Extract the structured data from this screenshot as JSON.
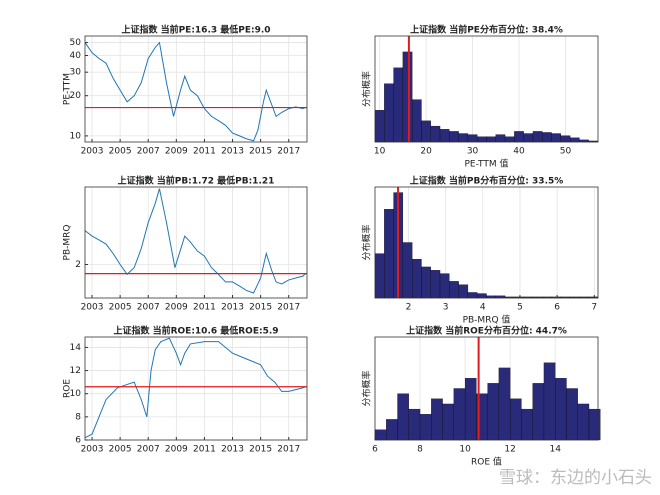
{
  "chart_data": [
    {
      "type": "line",
      "title": "上证指数 当前PE:16.3 最低PE:9.0",
      "ylabel": "PE-TTM",
      "color": "#1f77b4",
      "ylog": true,
      "grid": true,
      "x": [
        2002.5,
        2003,
        2003.5,
        2004,
        2004.5,
        2005,
        2005.5,
        2006,
        2006.5,
        2007,
        2007.5,
        2007.8,
        2008.3,
        2008.8,
        2009.3,
        2009.6,
        2010,
        2010.5,
        2011,
        2011.5,
        2012,
        2012.5,
        2013,
        2013.5,
        2014,
        2014.5,
        2014.8,
        2015.2,
        2015.4,
        2015.8,
        2016.1,
        2016.5,
        2017,
        2017.5,
        2018,
        2018.2
      ],
      "values": [
        50,
        42,
        38,
        35,
        27,
        22,
        18,
        20,
        25,
        38,
        46,
        50,
        25,
        14,
        22,
        28,
        22,
        20,
        16,
        14,
        13,
        12,
        10.5,
        10,
        9.5,
        9.2,
        11,
        18,
        22,
        17,
        14,
        15,
        16,
        16.5,
        16,
        16.3
      ],
      "xlim": [
        2002.5,
        2018.3
      ],
      "xticks": [
        2003,
        2005,
        2007,
        2009,
        2011,
        2013,
        2015,
        2017
      ],
      "ylim": [
        9,
        56
      ],
      "yticks": [
        10,
        20,
        30,
        40,
        50
      ],
      "hline": 16.3,
      "hline_color": "#e41a1c"
    },
    {
      "type": "histogram",
      "title": "上证指数 当前PE分布百分位: 38.4%",
      "xlabel": "PE-TTM 值",
      "ylabel": "分布概率",
      "color": "#2a2a7a",
      "grid": true,
      "bins": [
        9,
        11,
        13,
        15,
        17,
        19,
        21,
        23,
        25,
        27,
        29,
        31,
        33,
        35,
        37,
        39,
        41,
        43,
        45,
        47,
        49,
        51,
        53,
        55,
        57
      ],
      "values": [
        30,
        55,
        70,
        85,
        40,
        20,
        15,
        12,
        10,
        8,
        7,
        5,
        5,
        7,
        5,
        10,
        8,
        10,
        9,
        8,
        6,
        4,
        2,
        1
      ],
      "xlim": [
        9,
        57
      ],
      "xticks": [
        10,
        20,
        30,
        40,
        50
      ],
      "ylim": [
        0,
        100
      ],
      "vline": 16.3,
      "vline_color": "#e41a1c"
    },
    {
      "type": "line",
      "title": "上证指数 当前PB:1.72 最低PB:1.21",
      "ylabel": "PB-MRQ",
      "color": "#1f77b4",
      "ylog": true,
      "grid": true,
      "x": [
        2002.5,
        2003,
        2003.5,
        2004,
        2004.5,
        2005,
        2005.5,
        2006,
        2006.5,
        2007,
        2007.5,
        2007.8,
        2008.3,
        2008.9,
        2009.6,
        2010,
        2010.5,
        2011,
        2011.5,
        2012,
        2012.5,
        2013,
        2013.5,
        2014,
        2014.5,
        2015,
        2015.4,
        2015.8,
        2016.1,
        2016.5,
        2017,
        2017.5,
        2018,
        2018.2
      ],
      "values": [
        3.5,
        3.2,
        3.0,
        2.8,
        2.4,
        2.0,
        1.7,
        1.9,
        2.6,
        4.0,
        5.5,
        7.0,
        4.0,
        1.9,
        3.2,
        2.9,
        2.5,
        2.3,
        1.9,
        1.7,
        1.5,
        1.5,
        1.4,
        1.3,
        1.25,
        1.6,
        2.4,
        1.8,
        1.5,
        1.45,
        1.55,
        1.6,
        1.65,
        1.72
      ],
      "xlim": [
        2002.5,
        2018.3
      ],
      "xticks": [
        2003,
        2005,
        2007,
        2009,
        2011,
        2013,
        2015,
        2017
      ],
      "ylim": [
        1.15,
        7.2
      ],
      "yticks": [
        2
      ],
      "hline": 1.72,
      "hline_color": "#e41a1c"
    },
    {
      "type": "histogram",
      "title": "上证指数 当前PB分布百分位: 33.5%",
      "xlabel": "PB-MRQ 值",
      "ylabel": "分布概率",
      "color": "#2a2a7a",
      "grid": true,
      "bins": [
        1.1,
        1.35,
        1.6,
        1.85,
        2.1,
        2.35,
        2.6,
        2.85,
        3.1,
        3.35,
        3.6,
        3.85,
        4.1,
        4.35,
        4.6,
        4.85,
        5.1,
        5.35,
        5.6,
        5.85,
        6.1,
        6.35,
        6.6,
        6.85,
        7.1
      ],
      "values": [
        40,
        80,
        95,
        50,
        35,
        28,
        25,
        22,
        15,
        12,
        5,
        4,
        2,
        2,
        1,
        1,
        1,
        1,
        1,
        1,
        1,
        1,
        1,
        1
      ],
      "xlim": [
        1.1,
        7.1
      ],
      "xticks": [
        2,
        3,
        4,
        5,
        6,
        7
      ],
      "ylim": [
        0,
        100
      ],
      "vline": 1.72,
      "vline_color": "#e41a1c"
    },
    {
      "type": "line",
      "title": "上证指数 当前ROE:10.6 最低ROE:5.9",
      "ylabel": "ROE",
      "color": "#1f77b4",
      "grid": true,
      "x": [
        2002.5,
        2003,
        2003.5,
        2004,
        2004.8,
        2005.5,
        2006,
        2006.5,
        2006.9,
        2007.2,
        2007.5,
        2007.9,
        2008.5,
        2009,
        2009.3,
        2009.6,
        2010,
        2011,
        2012,
        2013,
        2014,
        2015,
        2015.5,
        2016,
        2016.5,
        2017,
        2018,
        2018.2
      ],
      "values": [
        6.2,
        6.5,
        8,
        9.5,
        10.5,
        10.8,
        11,
        9.5,
        8,
        12,
        13.8,
        14.5,
        14.8,
        13.5,
        12.5,
        13.5,
        14.3,
        14.5,
        14.5,
        13.5,
        13,
        12.5,
        11.5,
        11,
        10.2,
        10.2,
        10.5,
        10.6
      ],
      "xlim": [
        2002.5,
        2018.3
      ],
      "xticks": [
        2003,
        2005,
        2007,
        2009,
        2011,
        2013,
        2015,
        2017
      ],
      "ylim": [
        6,
        14.9
      ],
      "yticks": [
        6,
        8,
        10,
        12,
        14
      ],
      "hline": 10.6,
      "hline_color": "#e41a1c"
    },
    {
      "type": "histogram",
      "title": "上证指数 当前ROE分布百分位: 44.7%",
      "xlabel": "ROE 值",
      "ylabel": "分布概率",
      "color": "#2a2a7a",
      "grid": true,
      "bins": [
        6,
        6.5,
        7,
        7.5,
        8,
        8.5,
        9,
        9.5,
        10,
        10.5,
        11,
        11.5,
        12,
        12.5,
        13,
        13.5,
        14,
        14.5,
        15,
        15.5,
        16
      ],
      "values": [
        10,
        20,
        45,
        30,
        25,
        40,
        35,
        50,
        60,
        45,
        55,
        70,
        40,
        30,
        55,
        75,
        60,
        50,
        35,
        30
      ],
      "xlim": [
        6,
        15.9
      ],
      "xticks": [
        6,
        8,
        10,
        12,
        14
      ],
      "ylim": [
        0,
        100
      ],
      "vline": 10.6,
      "vline_color": "#e41a1c"
    }
  ],
  "watermark": "雪球：东边的小石头"
}
